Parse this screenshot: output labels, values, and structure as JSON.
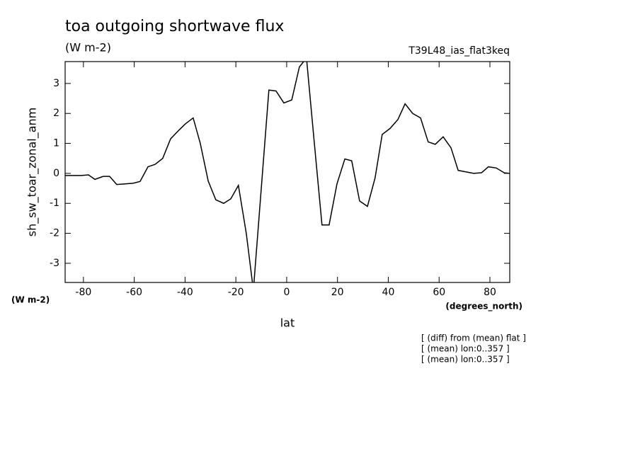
{
  "chart_data": {
    "type": "line",
    "title": "toa outgoing shortwave flux",
    "subtitle": "(W m-2)",
    "run_label": "T39L48_ias_flat3keq",
    "x_label": "lat",
    "x_units": "(degrees_north)",
    "y_label": "sh_sw_toar_zonal_anm",
    "y_units": "(W m-2)",
    "notes": [
      "[ (diff) from (mean) flat ]",
      "[ (mean) lon:0..357 ]",
      "[ (mean) lon:0..357 ]"
    ],
    "color": "#000000",
    "x": [
      -87.2,
      -83.9,
      -80.8,
      -78.0,
      -75.5,
      -72.2,
      -69.7,
      -66.9,
      -63.6,
      -60.5,
      -57.7,
      -54.6,
      -51.8,
      -48.8,
      -45.7,
      -42.9,
      -39.9,
      -36.8,
      -34.0,
      -30.9,
      -27.9,
      -24.8,
      -22.0,
      -19.0,
      -15.9,
      -13.1,
      -7.0,
      -4.2,
      -1.1,
      2.0,
      5.0,
      7.8,
      10.9,
      13.9,
      16.7,
      19.8,
      22.9,
      25.6,
      28.7,
      31.8,
      34.8,
      37.6,
      40.7,
      43.8,
      46.6,
      49.6,
      52.7,
      55.7,
      58.5,
      61.6,
      64.7,
      67.5,
      70.5,
      73.6,
      76.7,
      79.4,
      82.5,
      85.6,
      87.8
    ],
    "values": [
      -0.07,
      -0.07,
      -0.07,
      -0.05,
      -0.2,
      -0.1,
      -0.1,
      -0.37,
      -0.35,
      -0.33,
      -0.27,
      0.22,
      0.3,
      0.5,
      1.15,
      1.4,
      1.65,
      1.85,
      1.0,
      -0.25,
      -0.88,
      -1.0,
      -0.85,
      -0.4,
      -2.0,
      -3.9,
      2.78,
      2.75,
      2.35,
      2.45,
      3.55,
      3.85,
      1.0,
      -1.72,
      -1.72,
      -0.35,
      0.48,
      0.42,
      -0.92,
      -1.1,
      -0.15,
      1.3,
      1.5,
      1.8,
      2.32,
      2.0,
      1.85,
      1.05,
      0.97,
      1.22,
      0.85,
      0.1,
      0.05,
      0.0,
      0.02,
      0.22,
      0.18,
      0.02,
      0.0
    ],
    "xlim": [
      -87.2,
      87.8
    ],
    "ylim": [
      -3.64,
      3.73
    ],
    "xticks": [
      -80,
      -60,
      -40,
      -20,
      0,
      20,
      40,
      60,
      80
    ],
    "yticks": [
      -3,
      -2,
      -1,
      0,
      1,
      2,
      3
    ]
  }
}
